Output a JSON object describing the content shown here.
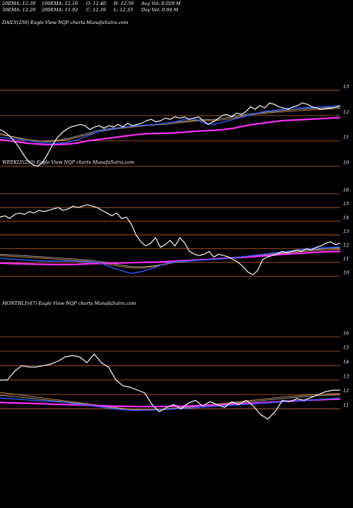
{
  "header": {
    "ema20": "20EMA: 12.39",
    "ema100": "100EMA: 12.16",
    "open": "O: 12.40",
    "high": "H: 12.50",
    "avgvol": "Avg Vol: 0.029 M",
    "ema30": "30EMA: 12.29",
    "ema200": "200EMA: 11.92",
    "close": "C: 12.39",
    "low": "L: 12.33",
    "dayvol": "Day Vol: 0.04  M"
  },
  "colors": {
    "grid": "#c0622a",
    "price": "#ffffff",
    "ema_blue": "#2a5cff",
    "ema_magenta": "#ff2dff",
    "ema_brown": "#c8864a",
    "ema_gray": "#bbbbbb"
  },
  "chart_data": [
    {
      "type": "line",
      "label": "DAILY(250) Eagle   View  NQP charts MunafaSutra.com",
      "yticks": [
        13,
        12,
        11,
        10
      ],
      "ylim": [
        9.6,
        13.5
      ],
      "x_count": 60,
      "series": [
        {
          "role": "price",
          "values": [
            11.45,
            11.35,
            11.2,
            11.0,
            10.75,
            10.45,
            10.2,
            10.05,
            10.0,
            10.15,
            10.45,
            10.8,
            11.1,
            11.3,
            11.45,
            11.55,
            11.6,
            11.65,
            11.6,
            11.45,
            11.55,
            11.6,
            11.5,
            11.6,
            11.55,
            11.65,
            11.55,
            11.7,
            11.6,
            11.65,
            11.7,
            11.8,
            11.85,
            11.75,
            11.8,
            11.9,
            11.85,
            11.95,
            11.9,
            11.95,
            11.85,
            11.9,
            11.95,
            11.8,
            11.65,
            11.75,
            11.85,
            12.0,
            12.05,
            11.95,
            12.1,
            12.05,
            12.15,
            12.35,
            12.25,
            12.4,
            12.3,
            12.5,
            12.45,
            12.35,
            12.3,
            12.25,
            12.35,
            12.4,
            12.5,
            12.45,
            12.35,
            12.3,
            12.25,
            12.28,
            12.3,
            12.33,
            12.4
          ]
        },
        {
          "role": "ema_blue",
          "values": [
            11.15,
            11.1,
            11.05,
            11.0,
            10.95,
            10.92,
            10.9,
            10.95,
            11.05,
            11.2,
            11.35,
            11.45,
            11.5,
            11.55,
            11.6,
            11.62,
            11.65,
            11.7,
            11.75,
            11.85,
            11.88,
            11.7,
            11.65,
            11.75,
            11.85,
            11.95,
            12.05,
            12.15,
            12.2,
            12.25,
            12.3,
            12.3,
            12.32,
            12.35,
            12.37,
            12.39
          ]
        },
        {
          "role": "ema_magenta",
          "values": [
            11.05,
            11.0,
            10.95,
            10.9,
            10.88,
            10.85,
            10.86,
            10.88,
            10.92,
            11.0,
            11.05,
            11.1,
            11.15,
            11.2,
            11.25,
            11.28,
            11.3,
            11.3,
            11.32,
            11.35,
            11.38,
            11.4,
            11.42,
            11.45,
            11.5,
            11.58,
            11.65,
            11.7,
            11.75,
            11.8,
            11.82,
            11.84,
            11.86,
            11.88,
            11.9,
            11.92
          ]
        },
        {
          "role": "ema_brown",
          "values": [
            11.25,
            11.18,
            11.1,
            11.05,
            11.0,
            10.98,
            11.0,
            11.05,
            11.15,
            11.25,
            11.35,
            11.42,
            11.48,
            11.52,
            11.56,
            11.6,
            11.63,
            11.66,
            11.7,
            11.74,
            11.78,
            11.8,
            11.8,
            11.84,
            11.9,
            11.98,
            12.04,
            12.08,
            12.12,
            12.15,
            12.18,
            12.2,
            12.22,
            12.24,
            12.26,
            12.29
          ]
        },
        {
          "role": "ema_gray",
          "values": [
            11.3,
            11.2,
            11.12,
            11.05,
            11.0,
            11.0,
            11.03,
            11.1,
            11.2,
            11.3,
            11.4,
            11.47,
            11.52,
            11.56,
            11.6,
            11.63,
            11.66,
            11.7,
            11.74,
            11.78,
            11.82,
            11.84,
            11.85,
            11.9,
            11.96,
            12.03,
            12.08,
            12.12,
            12.16,
            12.2,
            12.23,
            12.26,
            12.28,
            12.3,
            12.32,
            12.33
          ]
        }
      ]
    },
    {
      "type": "line",
      "label": "WEEKLY(250) Eagle   View  NQP charts MunafaSutra.com",
      "yticks": [
        16,
        15,
        14,
        13,
        12,
        11,
        10
      ],
      "ylim": [
        9.3,
        16.5
      ],
      "x_count": 60,
      "series": [
        {
          "role": "price",
          "values": [
            14.3,
            14.4,
            14.2,
            14.5,
            14.6,
            14.5,
            14.7,
            14.6,
            14.8,
            14.7,
            14.8,
            14.9,
            15.0,
            14.8,
            14.9,
            15.1,
            15.0,
            15.1,
            15.2,
            15.1,
            15.0,
            14.8,
            14.6,
            14.4,
            14.6,
            14.2,
            14.3,
            13.8,
            13.0,
            12.5,
            12.2,
            12.4,
            12.8,
            12.1,
            12.3,
            12.6,
            12.2,
            12.8,
            12.4,
            11.8,
            11.6,
            11.5,
            11.6,
            11.8,
            11.4,
            11.6,
            11.5,
            11.4,
            11.2,
            11.0,
            10.7,
            10.3,
            10.1,
            10.4,
            11.2,
            11.4,
            11.5,
            11.6,
            11.8,
            11.7,
            11.8,
            11.9,
            11.8,
            12.0,
            11.9,
            12.1,
            12.2,
            12.4,
            12.5,
            12.3,
            12.4
          ]
        },
        {
          "role": "ema_blue",
          "values": [
            11.3,
            11.25,
            11.2,
            11.15,
            11.1,
            11.1,
            11.1,
            11.08,
            11.05,
            11.0,
            10.7,
            10.4,
            10.2,
            10.35,
            10.6,
            10.9,
            11.05,
            11.1,
            11.15,
            11.2,
            11.25,
            11.3,
            11.4,
            11.5,
            11.6,
            11.7,
            11.8,
            11.9,
            12.0,
            12.05,
            12.1,
            12.12
          ]
        },
        {
          "role": "ema_magenta",
          "values": [
            10.95,
            10.92,
            10.9,
            10.88,
            10.86,
            10.85,
            10.85,
            10.86,
            10.9,
            10.92,
            10.94,
            10.96,
            10.98,
            11.0,
            11.02,
            11.05,
            11.1,
            11.14,
            11.18,
            11.22,
            11.28,
            11.32,
            11.36,
            11.42,
            11.48,
            11.55,
            11.6,
            11.65,
            11.7,
            11.75,
            11.78,
            11.8
          ]
        },
        {
          "role": "ema_brown",
          "values": [
            11.5,
            11.45,
            11.4,
            11.35,
            11.3,
            11.25,
            11.2,
            11.15,
            11.1,
            11.0,
            10.85,
            10.7,
            10.6,
            10.6,
            10.7,
            10.85,
            11.0,
            11.08,
            11.15,
            11.2,
            11.25,
            11.3,
            11.38,
            11.45,
            11.52,
            11.6,
            11.68,
            11.75,
            11.82,
            11.88,
            11.92,
            11.95
          ]
        },
        {
          "role": "ema_gray",
          "values": [
            11.6,
            11.55,
            11.5,
            11.45,
            11.4,
            11.35,
            11.3,
            11.25,
            11.18,
            11.08,
            10.95,
            10.8,
            10.7,
            10.68,
            10.75,
            10.88,
            11.0,
            11.1,
            11.17,
            11.23,
            11.3,
            11.36,
            11.42,
            11.5,
            11.58,
            11.66,
            11.74,
            11.82,
            11.9,
            11.96,
            12.02,
            12.06
          ]
        }
      ]
    },
    {
      "type": "line",
      "label": "MONTHLY(47) Eagle   View  NQP charts MunafaSutra.com",
      "yticks": [
        16,
        15,
        14,
        13,
        12,
        11
      ],
      "ylim": [
        10.0,
        16.6
      ],
      "x_count": 48,
      "series": [
        {
          "role": "price",
          "values": [
            13.0,
            13.0,
            13.6,
            14.0,
            13.9,
            13.9,
            14.0,
            14.1,
            14.3,
            14.6,
            14.7,
            14.6,
            14.2,
            14.8,
            14.2,
            13.9,
            13.0,
            12.6,
            12.5,
            12.3,
            12.1,
            11.3,
            10.8,
            11.1,
            11.3,
            11.0,
            11.4,
            11.6,
            11.2,
            11.5,
            11.3,
            11.1,
            11.5,
            11.3,
            11.6,
            11.2,
            10.6,
            10.3,
            10.8,
            11.6,
            11.5,
            11.7,
            11.6,
            11.8,
            12.0,
            12.2,
            12.3,
            12.3
          ]
        },
        {
          "role": "ema_blue",
          "values": [
            11.75,
            11.7,
            11.65,
            11.6,
            11.55,
            11.5,
            11.45,
            11.35,
            11.25,
            11.15,
            11.05,
            10.95,
            10.9,
            10.9,
            10.92,
            10.95,
            11.0,
            11.05,
            11.1,
            11.15,
            11.2,
            11.25,
            11.3,
            11.35,
            11.4,
            11.45,
            11.5,
            11.55,
            11.6,
            11.65,
            11.7,
            11.75
          ]
        },
        {
          "role": "ema_magenta",
          "values": [
            11.45,
            11.42,
            11.4,
            11.38,
            11.35,
            11.32,
            11.3,
            11.28,
            11.25,
            11.22,
            11.2,
            11.18,
            11.17,
            11.16,
            11.16,
            11.17,
            11.18,
            11.2,
            11.22,
            11.25,
            11.28,
            11.32,
            11.36,
            11.4,
            11.44,
            11.48,
            11.52,
            11.56,
            11.6,
            11.63,
            11.66,
            11.68
          ]
        },
        {
          "role": "ema_brown",
          "values": [
            12.15,
            12.05,
            11.95,
            11.85,
            11.75,
            11.65,
            11.55,
            11.45,
            11.35,
            11.25,
            11.15,
            11.05,
            10.98,
            10.95,
            10.96,
            11.0,
            11.06,
            11.12,
            11.2,
            11.28,
            11.36,
            11.44,
            11.52,
            11.6,
            11.68,
            11.76,
            11.84,
            11.9,
            11.96,
            12.0,
            12.04,
            12.08
          ]
        },
        {
          "role": "ema_gray",
          "values": [
            11.95,
            11.88,
            11.8,
            11.72,
            11.64,
            11.56,
            11.48,
            11.4,
            11.3,
            11.2,
            11.1,
            11.02,
            10.96,
            10.94,
            10.95,
            10.98,
            11.04,
            11.1,
            11.17,
            11.24,
            11.31,
            11.38,
            11.45,
            11.52,
            11.59,
            11.66,
            11.73,
            11.8,
            11.86,
            11.91,
            11.95,
            11.98
          ]
        }
      ]
    }
  ]
}
